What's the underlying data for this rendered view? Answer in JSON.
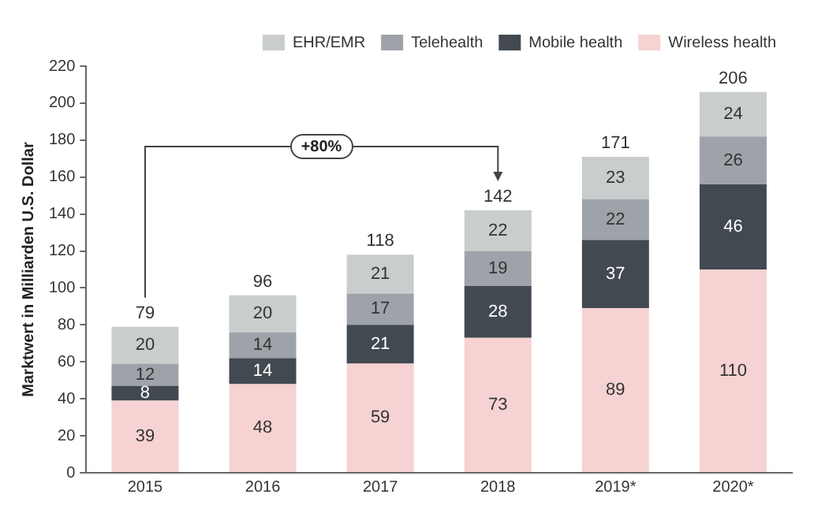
{
  "chart_data": {
    "type": "bar",
    "ylabel": "Marktwert in Milliarden U.S. Dollar",
    "categories": [
      "2015",
      "2016",
      "2017",
      "2018",
      "2019*",
      "2020*"
    ],
    "series": [
      {
        "name": "Wireless health",
        "color": "#f6d2d2",
        "values": [
          39,
          48,
          59,
          73,
          89,
          110
        ]
      },
      {
        "name": "Mobile health",
        "color": "#424951",
        "values": [
          8,
          14,
          21,
          28,
          37,
          46
        ]
      },
      {
        "name": "Telehealth",
        "color": "#9ea3a9",
        "values": [
          12,
          14,
          17,
          19,
          22,
          26
        ]
      },
      {
        "name": "EHR/EMR",
        "color": "#c9cdcd",
        "values": [
          20,
          20,
          21,
          22,
          23,
          24
        ]
      }
    ],
    "stacked": true,
    "data_labels": true,
    "totals": [
      "79",
      "96",
      "118",
      "142",
      "171",
      "206"
    ],
    "ylim": [
      0,
      220
    ],
    "yticks": [
      0,
      20,
      40,
      60,
      80,
      100,
      120,
      140,
      160,
      180,
      200,
      220
    ],
    "grid": false,
    "legend": "top right",
    "annotations": [
      "+80%"
    ]
  }
}
